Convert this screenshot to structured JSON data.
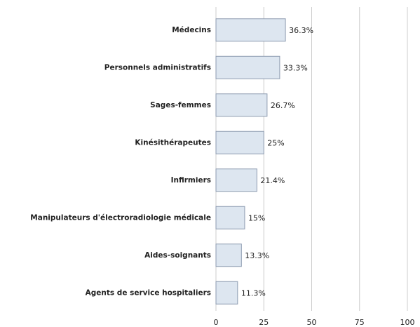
{
  "chart_data": {
    "type": "bar",
    "categories": [
      "Médecins",
      "Personnels administratifs",
      "Sages-femmes",
      "Kinésithérapeutes",
      "Infirmiers",
      "Manipulateurs d'électroradiologie médicale",
      "Aides-soignants",
      "Agents de service hospitaliers"
    ],
    "values": [
      36.3,
      33.3,
      26.7,
      25,
      21.4,
      15,
      13.3,
      11.3
    ],
    "value_labels": [
      "36.3%",
      "33.3%",
      "26.7%",
      "25%",
      "21.4%",
      "15%",
      "13.3%",
      "11.3%"
    ],
    "color": "#dde6f0",
    "xlim": [
      0,
      100
    ],
    "xticks": [
      0,
      25,
      50,
      75,
      100
    ],
    "grid": true
  }
}
